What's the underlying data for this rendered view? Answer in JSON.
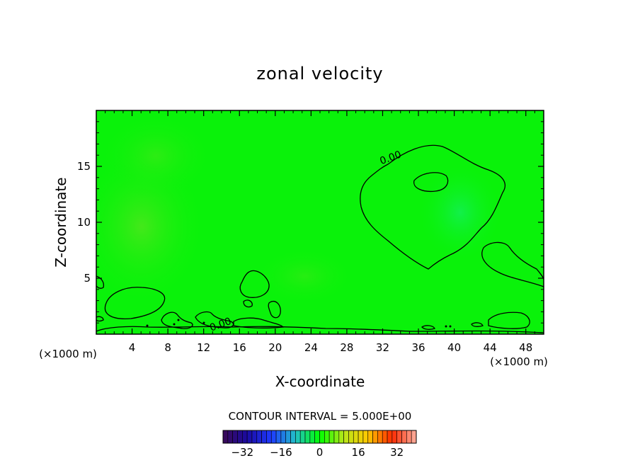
{
  "chart_data": {
    "type": "contour",
    "title": "zonal velocity",
    "xlabel": "X-coordinate",
    "ylabel": "Z-coordinate",
    "x_unit": "(×1000 m)",
    "x_unit_right": "(×1000 m)",
    "xlim": [
      0,
      50
    ],
    "ylim": [
      0,
      20
    ],
    "x_ticks": [
      4,
      8,
      12,
      16,
      20,
      24,
      28,
      32,
      36,
      40,
      44,
      48
    ],
    "y_ticks": [
      5,
      10,
      15
    ],
    "x_tick_labels": [
      "4",
      "8",
      "12",
      "16",
      "20",
      "24",
      "28",
      "32",
      "36",
      "40",
      "44",
      "48"
    ],
    "y_tick_labels": [
      "5",
      "10",
      "15"
    ],
    "contour_labels": [
      {
        "text": "0.00",
        "x": 33,
        "y": 15.5
      },
      {
        "text": "0.00",
        "x": 14,
        "y": 0.6
      }
    ],
    "contour_interval_text": "CONTOUR INTERVAL = 5.000E+00",
    "colorbar": {
      "min": -40,
      "max": 40,
      "step": 2,
      "ticks": [
        -32,
        -16,
        0,
        16,
        32
      ],
      "tick_labels": [
        "−32",
        "−16",
        "0",
        "16",
        "32"
      ],
      "colors": [
        "#3a0a55",
        "#1b0aa0",
        "#1e3aff",
        "#22c0c8",
        "#00ff00",
        "#b8e61a",
        "#ffc800",
        "#ff2a00",
        "#ffb0a0"
      ]
    },
    "background_color": "#0af20a"
  }
}
